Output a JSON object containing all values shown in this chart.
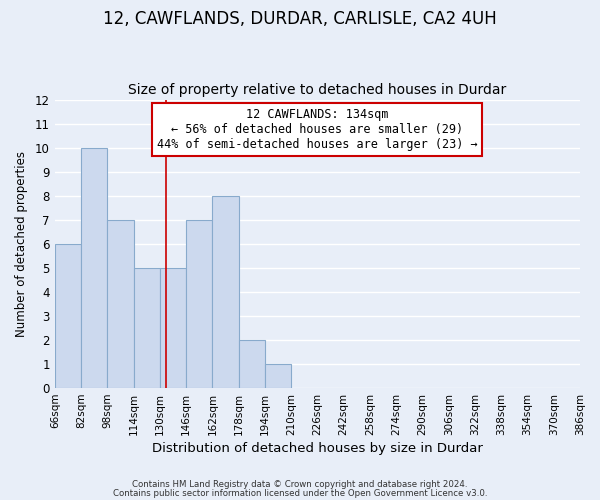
{
  "title": "12, CAWFLANDS, DURDAR, CARLISLE, CA2 4UH",
  "subtitle": "Size of property relative to detached houses in Durdar",
  "xlabel": "Distribution of detached houses by size in Durdar",
  "ylabel": "Number of detached properties",
  "bar_edges": [
    66,
    82,
    98,
    114,
    130,
    146,
    162,
    178,
    194,
    210,
    226,
    242,
    258,
    274,
    290,
    306,
    322,
    338,
    354,
    370,
    386
  ],
  "bar_heights": [
    6,
    10,
    7,
    5,
    5,
    7,
    8,
    2,
    1,
    0,
    0,
    0,
    0,
    0,
    0,
    0,
    0,
    0,
    0,
    0
  ],
  "bar_color": "#ccd9ee",
  "bar_edgecolor": "#88aacc",
  "vline_x": 134,
  "vline_color": "#cc0000",
  "ylim": [
    0,
    12
  ],
  "yticks": [
    0,
    1,
    2,
    3,
    4,
    5,
    6,
    7,
    8,
    9,
    10,
    11,
    12
  ],
  "annotation_title": "12 CAWFLANDS: 134sqm",
  "annotation_line1": "← 56% of detached houses are smaller (29)",
  "annotation_line2": "44% of semi-detached houses are larger (23) →",
  "annotation_box_color": "#ffffff",
  "annotation_box_edgecolor": "#cc0000",
  "background_color": "#e8eef8",
  "grid_color": "#ffffff",
  "footer_line1": "Contains HM Land Registry data © Crown copyright and database right 2024.",
  "footer_line2": "Contains public sector information licensed under the Open Government Licence v3.0.",
  "title_fontsize": 12,
  "subtitle_fontsize": 10
}
